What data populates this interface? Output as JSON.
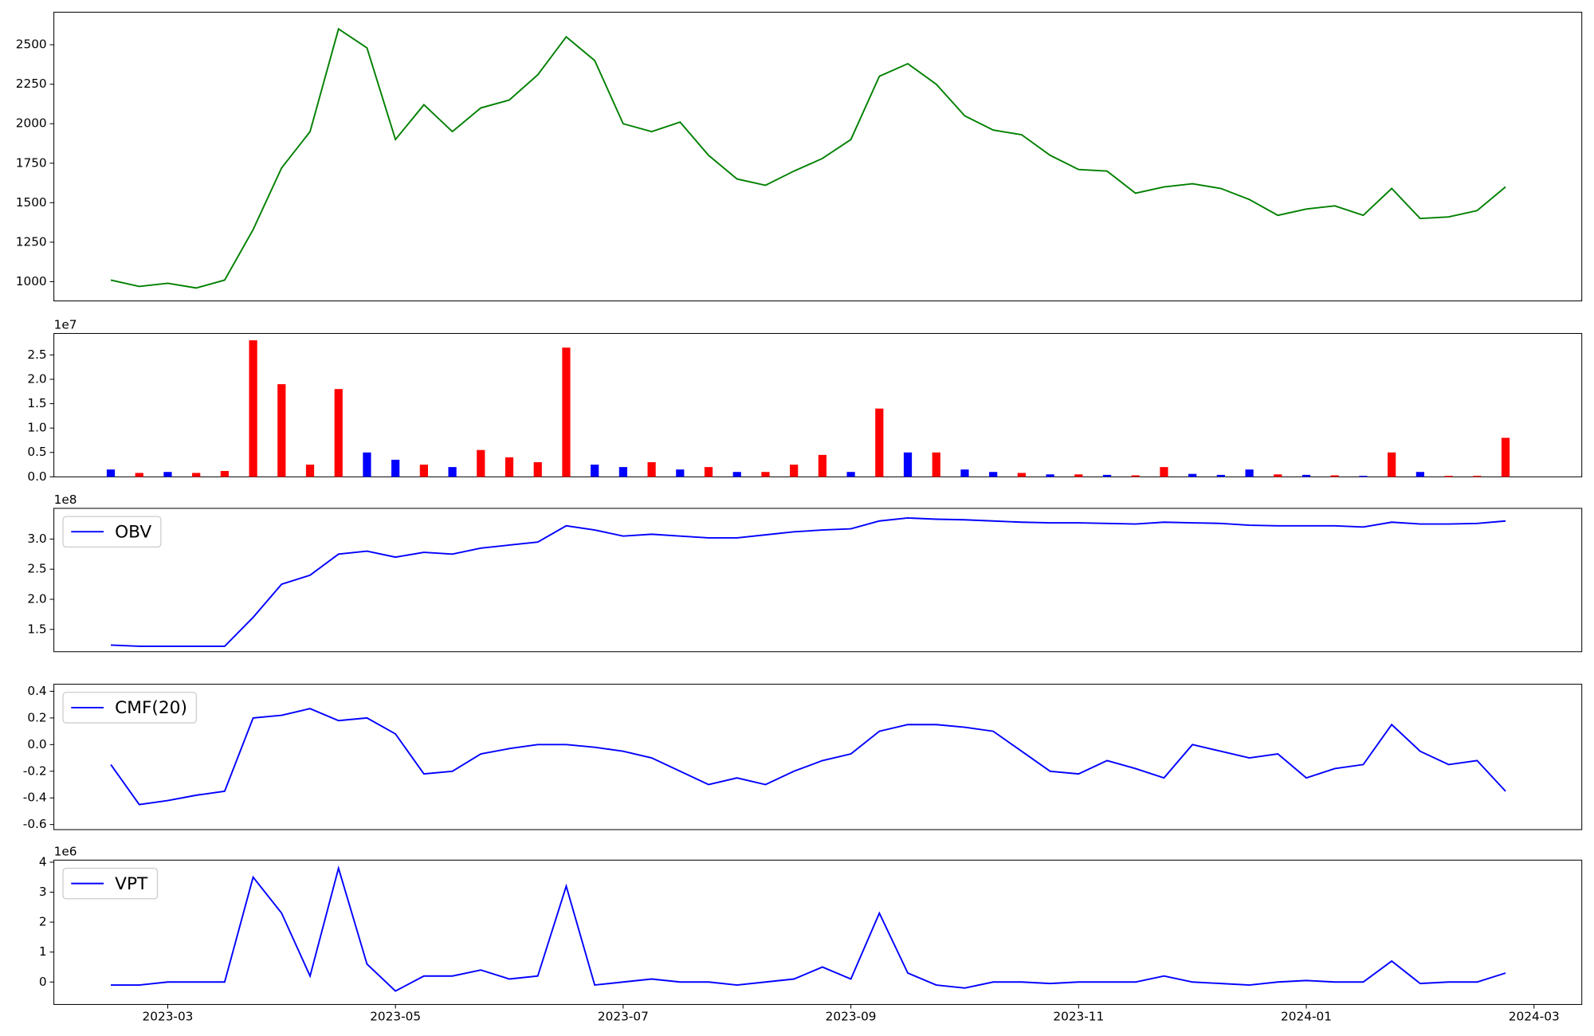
{
  "chart_data": [
    {
      "type": "line",
      "ylim": [
        878,
        2706
      ],
      "yticks": [
        1000,
        1250,
        1500,
        1750,
        2000,
        2250,
        2500
      ],
      "series": [
        {
          "color": "#008000",
          "values": [
            1010,
            970,
            990,
            960,
            1010,
            1330,
            1720,
            1950,
            2600,
            2480,
            1900,
            2120,
            1950,
            2100,
            2150,
            2310,
            2550,
            2400,
            2000,
            1950,
            2010,
            1800,
            1650,
            1610,
            1700,
            1780,
            1900,
            2300,
            2380,
            2250,
            2050,
            1960,
            1930,
            1800,
            1710,
            1700,
            1560,
            1600,
            1620,
            1590,
            1520,
            1420,
            1460,
            1480,
            1420,
            1590,
            1400,
            1410,
            1450,
            1600,
            null
          ]
        }
      ]
    },
    {
      "type": "bar",
      "ylim": [
        0,
        2.94
      ],
      "y_offset_label": "1e7",
      "yticks": [
        {
          "value": 0,
          "label": "0.0"
        },
        0.5,
        {
          "value": 1,
          "label": "1.0"
        },
        1.5,
        {
          "value": 2,
          "label": "2.0"
        },
        2.5
      ],
      "values": [
        0.15,
        0.08,
        0.1,
        0.08,
        0.12,
        2.8,
        1.9,
        0.25,
        1.8,
        0.5,
        0.35,
        0.25,
        0.2,
        0.55,
        0.4,
        0.3,
        2.65,
        0.25,
        0.2,
        0.3,
        0.15,
        0.2,
        0.1,
        0.1,
        0.25,
        0.45,
        0.1,
        1.4,
        0.5,
        0.5,
        0.15,
        0.1,
        0.08,
        0.05,
        0.05,
        0.04,
        0.03,
        0.2,
        0.06,
        0.04,
        0.15,
        0.05,
        0.04,
        0.03,
        0.02,
        0.5,
        0.1,
        0.02,
        0.02,
        0.8,
        null
      ],
      "colors": [
        "blue",
        "red",
        "blue",
        "red",
        "red",
        "red",
        "red",
        "red",
        "red",
        "blue",
        "blue",
        "red",
        "blue",
        "red",
        "red",
        "red",
        "red",
        "blue",
        "blue",
        "red",
        "blue",
        "red",
        "blue",
        "red",
        "red",
        "red",
        "blue",
        "red",
        "blue",
        "red",
        "blue",
        "blue",
        "red",
        "blue",
        "red",
        "blue",
        "red",
        "red",
        "blue",
        "blue",
        "blue",
        "red",
        "blue",
        "red",
        "blue",
        "red",
        "blue",
        "red",
        "red",
        "red",
        null
      ]
    },
    {
      "type": "line",
      "ylim": [
        1.13,
        3.51
      ],
      "y_offset_label": "1e8",
      "legend": "upper left",
      "yticks": [
        1.5,
        {
          "value": 2,
          "label": "2.0"
        },
        2.5,
        {
          "value": 3,
          "label": "3.0"
        }
      ],
      "series": [
        {
          "name": "OBV",
          "color": "blue",
          "values": [
            1.24,
            1.22,
            1.22,
            1.22,
            1.22,
            1.7,
            2.25,
            2.4,
            2.75,
            2.8,
            2.7,
            2.78,
            2.75,
            2.85,
            2.9,
            2.95,
            3.22,
            3.15,
            3.05,
            3.08,
            3.05,
            3.02,
            3.02,
            3.07,
            3.12,
            3.15,
            3.17,
            3.3,
            3.35,
            3.33,
            3.32,
            3.3,
            3.28,
            3.27,
            3.27,
            3.26,
            3.25,
            3.28,
            3.27,
            3.26,
            3.23,
            3.22,
            3.22,
            3.22,
            3.2,
            3.28,
            3.25,
            3.25,
            3.26,
            3.3,
            null
          ]
        }
      ]
    },
    {
      "type": "line",
      "ylim": [
        -0.638,
        0.453
      ],
      "legend": "upper left",
      "yticks": [
        -0.6,
        -0.4,
        -0.2,
        {
          "value": 0,
          "label": "0.0"
        },
        0.2,
        0.4
      ],
      "series": [
        {
          "name": "CMF(20)",
          "color": "blue",
          "values": [
            -0.15,
            -0.45,
            -0.42,
            -0.38,
            -0.35,
            0.2,
            0.22,
            0.27,
            0.18,
            0.2,
            0.08,
            -0.22,
            -0.2,
            -0.07,
            -0.03,
            0,
            0,
            -0.02,
            -0.05,
            -0.1,
            -0.2,
            -0.3,
            -0.25,
            -0.3,
            -0.2,
            -0.12,
            -0.07,
            0.1,
            0.15,
            0.15,
            0.13,
            0.1,
            -0.05,
            -0.2,
            -0.22,
            -0.12,
            -0.18,
            -0.25,
            0,
            -0.05,
            -0.1,
            -0.07,
            -0.25,
            -0.18,
            -0.15,
            0.15,
            -0.05,
            -0.15,
            -0.12,
            -0.35,
            null
          ]
        }
      ]
    },
    {
      "type": "line",
      "ylim": [
        -0.75,
        4.07
      ],
      "y_offset_label": "1e6",
      "legend": "upper left",
      "yticks": [
        0,
        1,
        2,
        3,
        4
      ],
      "x": [
        null,
        null,
        "2023-03",
        null,
        null,
        null,
        null,
        null,
        null,
        null,
        "2023-05",
        null,
        null,
        null,
        null,
        null,
        null,
        null,
        "2023-07",
        null,
        null,
        null,
        null,
        null,
        null,
        null,
        "2023-09",
        null,
        null,
        null,
        null,
        null,
        null,
        null,
        "2023-11",
        null,
        null,
        null,
        null,
        null,
        null,
        null,
        "2024-01",
        null,
        null,
        null,
        null,
        null,
        null,
        null,
        "2024-03"
      ],
      "series": [
        {
          "name": "VPT",
          "color": "blue",
          "values": [
            -0.1,
            -0.1,
            0,
            0,
            0,
            3.5,
            2.3,
            0.2,
            3.8,
            0.6,
            -0.3,
            0.2,
            0.2,
            0.4,
            0.1,
            0.2,
            3.2,
            -0.1,
            0,
            0.1,
            0,
            0,
            -0.1,
            0,
            0.1,
            0.5,
            0.1,
            2.3,
            0.3,
            -0.1,
            -0.2,
            0,
            0,
            -0.05,
            0,
            0,
            0,
            0.2,
            0,
            -0.05,
            -0.1,
            0,
            0.05,
            0,
            0,
            0.7,
            -0.05,
            0,
            0,
            0.3,
            null
          ]
        }
      ]
    }
  ]
}
